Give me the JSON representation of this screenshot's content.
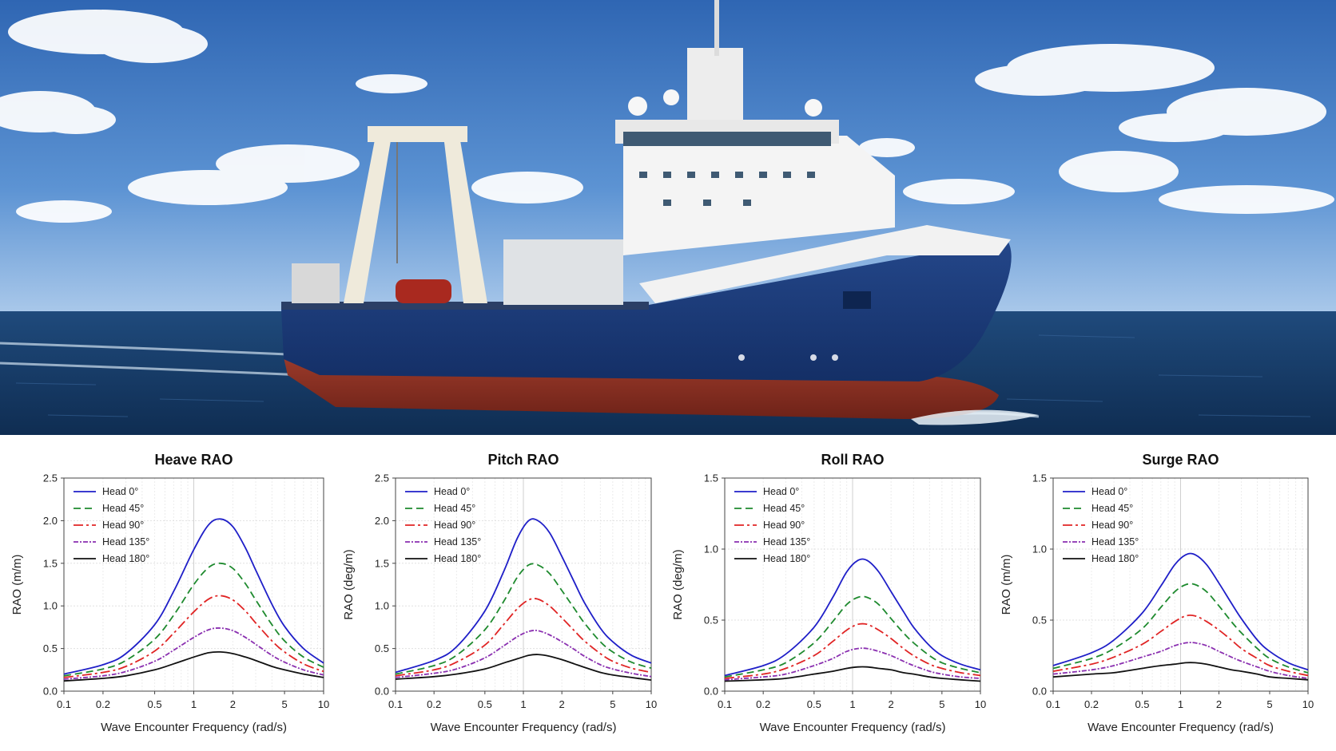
{
  "colors": {
    "head_0": "#1f1fc8",
    "head_45": "#1e8a2e",
    "head_90": "#e02424",
    "head_135": "#8a2fb0",
    "head_180": "#111111",
    "sky": "#4a7fc4",
    "sea": "#163a66",
    "hull": "#1b3c7a",
    "bottom_paint": "#8b2e22"
  },
  "photo": {
    "description_icon": "offshore-vessel-photo"
  },
  "chart_data": [
    {
      "type": "line",
      "title": "Heave RAO",
      "xlabel": "Wave Encounter Frequency (rad/s)",
      "ylabel": "RAO (m/m)",
      "xscale": "log",
      "xlim": [
        0.1,
        10
      ],
      "ylim": [
        0,
        2.5
      ],
      "xticks": [
        "0.1",
        "0.2",
        "0.5",
        "1",
        "2",
        "5",
        "10"
      ],
      "yticks": [
        "0.0",
        "0.5",
        "1.0",
        "1.5",
        "2.0",
        "2.5"
      ],
      "grid": true,
      "legend": "top-left",
      "x": [
        0.1,
        0.2,
        0.3,
        0.5,
        0.7,
        1.0,
        1.3,
        1.6,
        2.0,
        2.5,
        3.0,
        4.0,
        5.0,
        7.0,
        10.0
      ],
      "series": [
        {
          "name": "Head 0°",
          "values": [
            0.2,
            0.31,
            0.44,
            0.78,
            1.17,
            1.66,
            1.95,
            2.02,
            1.93,
            1.68,
            1.42,
            1.02,
            0.76,
            0.5,
            0.33
          ]
        },
        {
          "name": "Head 45°",
          "values": [
            0.18,
            0.26,
            0.36,
            0.61,
            0.89,
            1.25,
            1.45,
            1.5,
            1.44,
            1.26,
            1.07,
            0.78,
            0.59,
            0.4,
            0.28
          ]
        },
        {
          "name": "Head 90°",
          "values": [
            0.16,
            0.22,
            0.29,
            0.47,
            0.68,
            0.93,
            1.08,
            1.12,
            1.07,
            0.94,
            0.8,
            0.59,
            0.46,
            0.32,
            0.23
          ]
        },
        {
          "name": "Head 135°",
          "values": [
            0.14,
            0.18,
            0.23,
            0.35,
            0.48,
            0.63,
            0.72,
            0.74,
            0.71,
            0.63,
            0.55,
            0.42,
            0.34,
            0.25,
            0.19
          ]
        },
        {
          "name": "Head 180°",
          "values": [
            0.12,
            0.15,
            0.18,
            0.25,
            0.32,
            0.4,
            0.45,
            0.46,
            0.44,
            0.4,
            0.36,
            0.29,
            0.25,
            0.2,
            0.16
          ]
        }
      ]
    },
    {
      "type": "line",
      "title": "Pitch RAO",
      "xlabel": "Wave Encounter Frequency (rad/s)",
      "ylabel": "RAO (deg/m)",
      "xscale": "log",
      "xlim": [
        0.1,
        10
      ],
      "ylim": [
        0,
        2.5
      ],
      "xticks": [
        "0.1",
        "0.2",
        "0.5",
        "1",
        "2",
        "5",
        "10"
      ],
      "yticks": [
        "0.0",
        "0.5",
        "1.0",
        "1.5",
        "2.0",
        "2.5"
      ],
      "grid": true,
      "legend": "top-left",
      "x": [
        0.1,
        0.2,
        0.3,
        0.5,
        0.7,
        0.9,
        1.1,
        1.3,
        1.6,
        2.0,
        2.5,
        3.0,
        4.0,
        5.0,
        7.0,
        10.0
      ],
      "series": [
        {
          "name": "Head 0°",
          "values": [
            0.22,
            0.36,
            0.52,
            0.94,
            1.4,
            1.8,
            2.0,
            2.0,
            1.86,
            1.58,
            1.28,
            1.04,
            0.74,
            0.58,
            0.42,
            0.33
          ]
        },
        {
          "name": "Head 45°",
          "values": [
            0.2,
            0.3,
            0.42,
            0.72,
            1.05,
            1.34,
            1.48,
            1.48,
            1.38,
            1.18,
            0.97,
            0.8,
            0.58,
            0.46,
            0.34,
            0.27
          ]
        },
        {
          "name": "Head 90°",
          "values": [
            0.18,
            0.25,
            0.34,
            0.54,
            0.78,
            0.97,
            1.07,
            1.08,
            1.0,
            0.86,
            0.71,
            0.59,
            0.44,
            0.35,
            0.27,
            0.22
          ]
        },
        {
          "name": "Head 135°",
          "values": [
            0.16,
            0.21,
            0.26,
            0.39,
            0.53,
            0.64,
            0.7,
            0.71,
            0.66,
            0.58,
            0.49,
            0.41,
            0.31,
            0.26,
            0.21,
            0.17
          ]
        },
        {
          "name": "Head 180°",
          "values": [
            0.14,
            0.17,
            0.2,
            0.26,
            0.33,
            0.38,
            0.42,
            0.43,
            0.41,
            0.37,
            0.32,
            0.28,
            0.22,
            0.19,
            0.16,
            0.13
          ]
        }
      ]
    },
    {
      "type": "line",
      "title": "Roll RAO",
      "xlabel": "Wave Encounter Frequency (rad/s)",
      "ylabel": "RAO (deg/m)",
      "xscale": "log",
      "xlim": [
        0.1,
        10
      ],
      "ylim": [
        0,
        1.5
      ],
      "xticks": [
        "0.1",
        "0.2",
        "0.5",
        "1",
        "2",
        "5",
        "10"
      ],
      "yticks": [
        "0.0",
        "0.5",
        "1.0",
        "1.5"
      ],
      "grid": true,
      "legend": "top-left",
      "x": [
        0.1,
        0.2,
        0.3,
        0.5,
        0.7,
        0.9,
        1.1,
        1.3,
        1.6,
        2.0,
        2.5,
        3.0,
        4.0,
        5.0,
        7.0,
        10.0
      ],
      "series": [
        {
          "name": "Head 0°",
          "values": [
            0.11,
            0.18,
            0.26,
            0.45,
            0.66,
            0.84,
            0.92,
            0.92,
            0.84,
            0.7,
            0.56,
            0.45,
            0.32,
            0.25,
            0.19,
            0.15
          ]
        },
        {
          "name": "Head 45°",
          "values": [
            0.1,
            0.15,
            0.2,
            0.34,
            0.49,
            0.61,
            0.66,
            0.66,
            0.61,
            0.51,
            0.41,
            0.34,
            0.25,
            0.2,
            0.16,
            0.13
          ]
        },
        {
          "name": "Head 90°",
          "values": [
            0.09,
            0.12,
            0.16,
            0.25,
            0.35,
            0.43,
            0.47,
            0.47,
            0.43,
            0.37,
            0.3,
            0.25,
            0.19,
            0.16,
            0.13,
            0.11
          ]
        },
        {
          "name": "Head 135°",
          "values": [
            0.08,
            0.1,
            0.12,
            0.18,
            0.23,
            0.28,
            0.3,
            0.3,
            0.28,
            0.25,
            0.21,
            0.18,
            0.14,
            0.12,
            0.1,
            0.09
          ]
        },
        {
          "name": "Head 180°",
          "values": [
            0.07,
            0.08,
            0.09,
            0.12,
            0.14,
            0.16,
            0.17,
            0.17,
            0.16,
            0.15,
            0.13,
            0.12,
            0.1,
            0.09,
            0.08,
            0.07
          ]
        }
      ]
    },
    {
      "type": "line",
      "title": "Surge RAO",
      "xlabel": "Wave Encounter Frequency (rad/s)",
      "ylabel": "RAO (m/m)",
      "xscale": "log",
      "xlim": [
        0.1,
        10
      ],
      "ylim": [
        0,
        1.5
      ],
      "xticks": [
        "0.1",
        "0.2",
        "0.5",
        "1",
        "2",
        "5",
        "10"
      ],
      "yticks": [
        "0.0",
        "0.5",
        "1.0",
        "1.5"
      ],
      "grid": true,
      "legend": "top-left",
      "x": [
        0.1,
        0.2,
        0.3,
        0.5,
        0.7,
        0.9,
        1.1,
        1.3,
        1.6,
        2.0,
        2.5,
        3.0,
        4.0,
        5.0,
        7.0,
        10.0
      ],
      "series": [
        {
          "name": "Head 0°",
          "values": [
            0.18,
            0.27,
            0.36,
            0.55,
            0.74,
            0.89,
            0.96,
            0.96,
            0.89,
            0.76,
            0.62,
            0.51,
            0.36,
            0.28,
            0.2,
            0.15
          ]
        },
        {
          "name": "Head 45°",
          "values": [
            0.16,
            0.23,
            0.3,
            0.44,
            0.59,
            0.7,
            0.75,
            0.75,
            0.7,
            0.6,
            0.49,
            0.41,
            0.3,
            0.23,
            0.17,
            0.13
          ]
        },
        {
          "name": "Head 90°",
          "values": [
            0.14,
            0.19,
            0.24,
            0.33,
            0.42,
            0.49,
            0.53,
            0.53,
            0.49,
            0.43,
            0.36,
            0.3,
            0.23,
            0.18,
            0.14,
            0.11
          ]
        },
        {
          "name": "Head 135°",
          "values": [
            0.12,
            0.15,
            0.18,
            0.24,
            0.28,
            0.32,
            0.34,
            0.34,
            0.32,
            0.28,
            0.24,
            0.21,
            0.17,
            0.14,
            0.11,
            0.09
          ]
        },
        {
          "name": "Head 180°",
          "values": [
            0.1,
            0.12,
            0.13,
            0.16,
            0.18,
            0.19,
            0.2,
            0.2,
            0.19,
            0.17,
            0.15,
            0.14,
            0.12,
            0.1,
            0.09,
            0.08
          ]
        }
      ]
    }
  ]
}
